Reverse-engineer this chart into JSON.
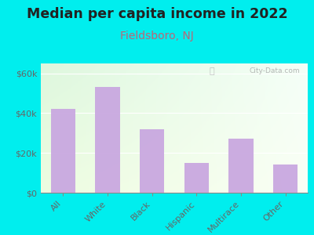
{
  "title": "Median per capita income in 2022",
  "subtitle": "Fieldsboro, NJ",
  "categories": [
    "All",
    "White",
    "Black",
    "Hispanic",
    "Multirace",
    "Other"
  ],
  "values": [
    42000,
    53000,
    32000,
    15000,
    27000,
    14000
  ],
  "bar_color": "#c9a8e0",
  "background_outer": "#00EEEE",
  "title_fontsize": 12.5,
  "subtitle_fontsize": 10,
  "subtitle_color": "#bb6677",
  "title_color": "#222222",
  "tick_label_color": "#666666",
  "ylim": [
    0,
    65000
  ],
  "yticks": [
    0,
    20000,
    40000,
    60000
  ],
  "ytick_labels": [
    "$0",
    "$20k",
    "$40k",
    "$60k"
  ],
  "watermark": "City-Data.com"
}
